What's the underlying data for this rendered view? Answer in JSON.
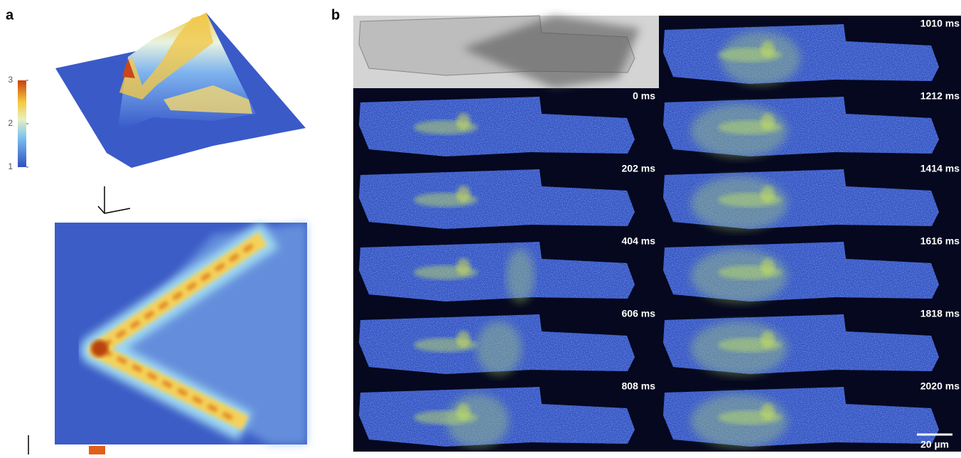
{
  "panel_a": {
    "label": "a",
    "colorbar": {
      "ticks": [
        1,
        2,
        3
      ]
    }
  },
  "panel_b": {
    "label": "b",
    "left_frames": [
      "0 ms",
      "202 ms",
      "404 ms",
      "606 ms",
      "808 ms"
    ],
    "right_frames": [
      "1010 ms",
      "1212 ms",
      "1414 ms",
      "1616 ms",
      "1818 ms",
      "2020 ms"
    ],
    "scale_bar": "20 µm"
  }
}
